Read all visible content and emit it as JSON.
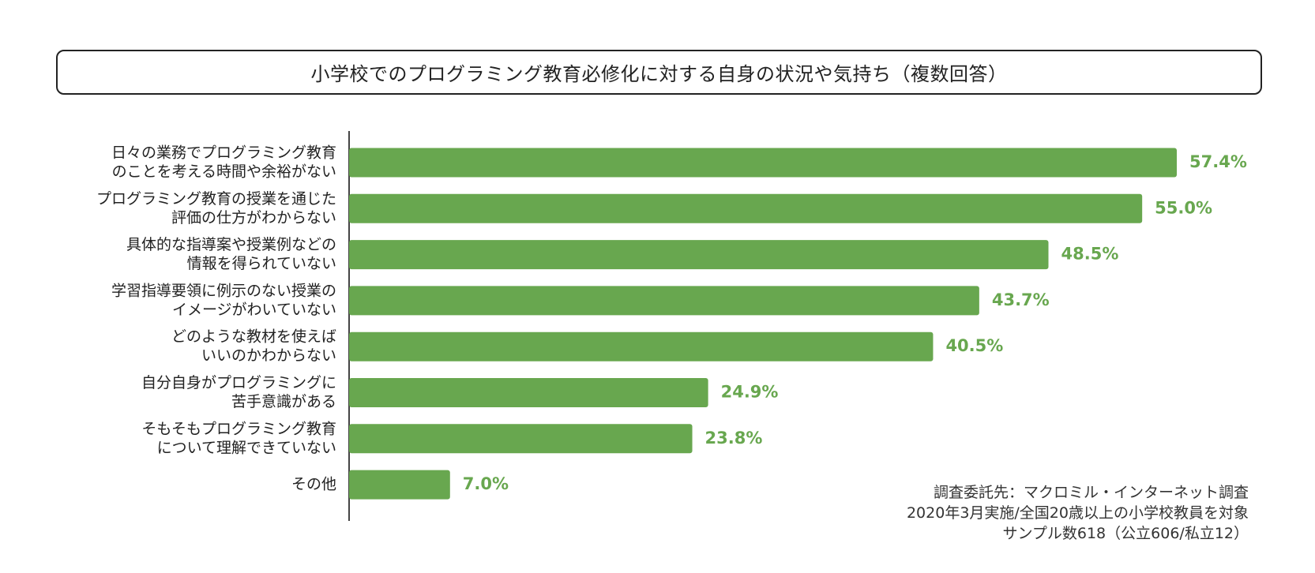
{
  "chart_data": {
    "type": "bar",
    "orientation": "horizontal",
    "title": "小学校でのプログラミング教育必修化に対する自身の状況や気持ち（複数回答）",
    "categories": [
      [
        "日々の業務でプログラミング教育",
        "のことを考える時間や余裕がない"
      ],
      [
        "プログラミング教育の授業を通じた",
        "評価の仕方がわからない"
      ],
      [
        "具体的な指導案や授業例などの",
        "情報を得られていない"
      ],
      [
        "学習指導要領に例示のない授業の",
        "イメージがわいていない"
      ],
      [
        "どのような教材を使えば",
        "いいのかわからない"
      ],
      [
        "自分自身がプログラミングに",
        "苦手意識がある"
      ],
      [
        "そもそもプログラミング教育",
        "について理解できていない"
      ],
      [
        "その他"
      ]
    ],
    "values": [
      57.4,
      55.0,
      48.5,
      43.7,
      40.5,
      24.9,
      23.8,
      7.0
    ],
    "value_labels": [
      "57.4%",
      "55.0%",
      "48.5%",
      "43.7%",
      "40.5%",
      "24.9%",
      "23.8%",
      "7.0%"
    ],
    "xlim": [
      0,
      57.4
    ],
    "grid": false,
    "bar_color": "#68a74f",
    "label_color": "#68a74f",
    "axis_color": "#444444"
  },
  "notes": [
    "調査委託先：マクロミル・インターネット調査",
    "2020年3月実施/全国20歳以上の小学校教員を対象",
    "サンプル数618（公立606/私立12）"
  ]
}
